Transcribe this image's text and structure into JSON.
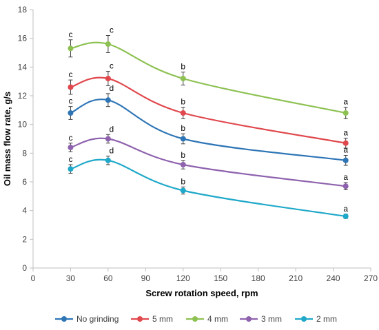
{
  "chart_data": {
    "type": "line",
    "xlabel": "Screw rotation speed, rpm",
    "ylabel": "Oil mass flow rate, g/s",
    "xlim": [
      0,
      270
    ],
    "ylim": [
      0,
      18
    ],
    "x_ticks": [
      0,
      30,
      60,
      90,
      120,
      150,
      180,
      210,
      240,
      270
    ],
    "y_ticks": [
      0,
      2,
      4,
      6,
      8,
      10,
      12,
      14,
      16,
      18
    ],
    "grid": false,
    "legend_position": "bottom",
    "x": [
      30,
      60,
      120,
      250
    ],
    "series": [
      {
        "name": "No grinding",
        "color": "#2E75B6",
        "values": [
          10.8,
          11.7,
          9.0,
          7.5
        ],
        "errors": [
          0.45,
          0.45,
          0.35,
          0.35
        ],
        "labels": [
          "c",
          "d",
          "b",
          "a"
        ]
      },
      {
        "name": "5 mm",
        "color": "#E0484D",
        "values": [
          12.6,
          13.2,
          10.8,
          8.7
        ],
        "errors": [
          0.5,
          0.5,
          0.4,
          0.35
        ],
        "labels": [
          "c",
          "c",
          "b",
          "a"
        ]
      },
      {
        "name": "4 mm",
        "color": "#8DC152",
        "values": [
          15.3,
          15.6,
          13.2,
          10.8
        ],
        "errors": [
          0.6,
          0.6,
          0.45,
          0.4
        ],
        "labels": [
          "c",
          "c",
          "b",
          "a"
        ]
      },
      {
        "name": "3 mm",
        "color": "#8E62AE",
        "values": [
          8.4,
          9.0,
          7.2,
          5.7
        ],
        "errors": [
          0.3,
          0.3,
          0.3,
          0.25
        ],
        "labels": [
          "c",
          "d",
          "b",
          "a"
        ]
      },
      {
        "name": "2 mm",
        "color": "#1FA8C9",
        "values": [
          6.9,
          7.5,
          5.4,
          3.6
        ],
        "errors": [
          0.3,
          0.3,
          0.25,
          0.15
        ],
        "labels": [
          "c",
          "d",
          "b",
          "a"
        ]
      }
    ]
  }
}
